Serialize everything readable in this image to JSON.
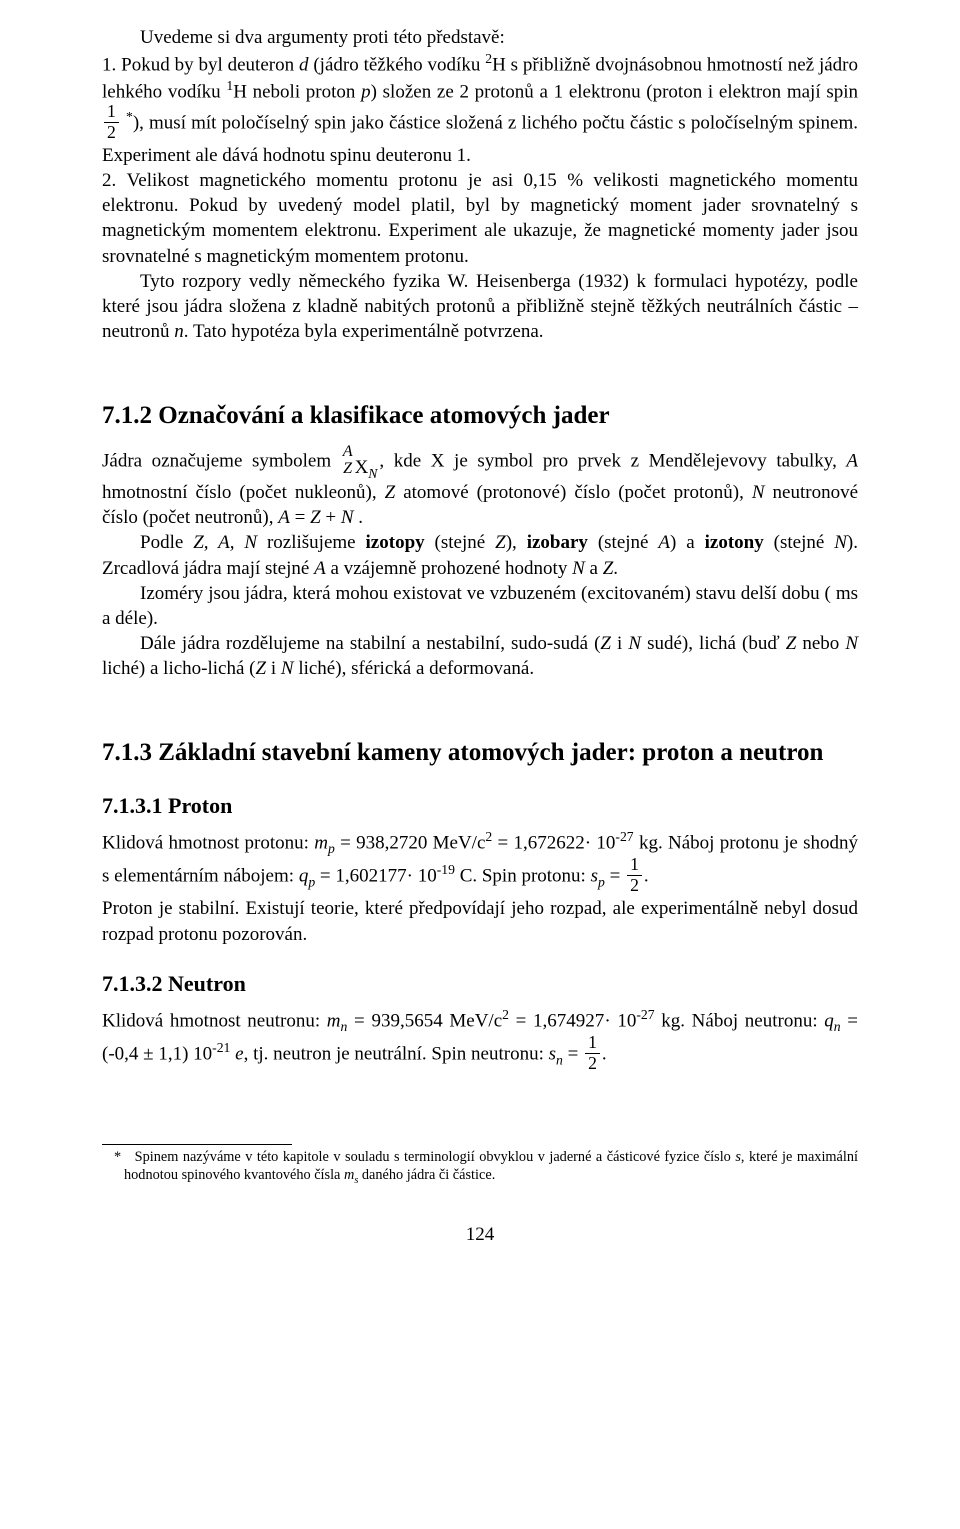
{
  "intro_line": "Uvedeme si dva argumenty proti této představě:",
  "item1_a": "1. Pokud by byl deuteron ",
  "item1_b": " (jádro těžkého vodíku ",
  "item1_c": "H s přibližně dvojnásobnou hmotností než jádro lehkého vodíku ",
  "item1_d": "H neboli proton ",
  "item1_e": ") složen ze 2 protonů a 1 elektronu (proton i elektron mají spin",
  "item1_f": "), musí mít poločíselný spin jako částice složená z lichého počtu částic s poločíselným spinem. Experiment ale dává hodnotu spinu deuteronu 1.",
  "item2": "2. Velikost magnetického momentu protonu je asi 0,15 % velikosti magnetického momentu elektronu. Pokud by uvedený model platil, byl by magnetický moment jader srovnatelný s magnetickým momentem elektronu. Experiment ale ukazuje, že magnetické momenty jader jsou srovnatelné s magnetickým momentem protonu.",
  "para2a": "Tyto rozpory vedly německého fyzika W. Heisenberga (1932) k formulaci hypotézy, podle které jsou jádra složena z kladně nabitých protonů a přibližně stejně těžkých neutrálních částic – neutronů ",
  "para2b": ". Tato hypotéza byla experimentálně potvrzena.",
  "h712": "7.1.2  Označování a klasifikace atomových jader",
  "s712_a": "Jádra označujeme symbolem",
  "s712_b": ",  kde X je symbol pro prvek z Mendělejevovy tabulky, ",
  "s712_c": " hmotnostní číslo (počet nukleonů), ",
  "s712_d": " atomové (protonové) číslo (počet protonů), ",
  "s712_e": " neutronové číslo (počet neutronů), ",
  "s712_f": " = ",
  "s712_g": " + ",
  "s712_h": " .",
  "s712_p2a": "Podle ",
  "s712_p2b": " rozlišujeme ",
  "s712_p2c": " (stejné ",
  "s712_p2d": "), ",
  "s712_p2e": " (stejné ",
  "s712_p2f": ") a ",
  "s712_p2g": " (stejné ",
  "s712_p2h": "). Zrcadlová jádra mají stejné ",
  "s712_p2i": " a vzájemně prohozené hodnoty ",
  "s712_p2j": " a ",
  "s712_p2k": ".",
  "s712_p3": "Izoméry jsou jádra, která mohou existovat ve vzbuzeném (excitovaném) stavu delší dobu ( ms a déle).",
  "s712_p4a": "Dále jádra rozdělujeme na stabilní a nestabilní, sudo-sudá (",
  "s712_p4b": " i ",
  "s712_p4c": " sudé), lichá (buď ",
  "s712_p4d": " nebo ",
  "s712_p4e": "  liché) a licho-lichá (",
  "s712_p4f": " i ",
  "s712_p4g": " liché), sférická a deformovaná.",
  "h713": "7.1.3  Základní stavební kameny atomových jader: proton a neutron",
  "h7131": "7.1.3.1  Proton",
  "proton_a": "Klidová hmotnost protonu: ",
  "proton_b": " = 938,2720 MeV/c",
  "proton_c": " = 1,672622",
  "proton_d": " kg. Náboj protonu je shodný s elementárním nábojem: ",
  "proton_e": " = 1,602177",
  "proton_f": " C. Spin protonu: ",
  "proton_g": ".",
  "proton_p2": "Proton je stabilní. Existují teorie, které předpovídají jeho rozpad, ale experimentálně nebyl dosud rozpad protonu pozorován.",
  "h7132": "7.1.3.2  Neutron",
  "neutron_a": "Klidová hmotnost neutronu: ",
  "neutron_b": " = 939,5654 MeV/c",
  "neutron_c": " = 1,674927",
  "neutron_d": " kg. Náboj neutronu: ",
  "neutron_e": " = (-0,4 ± 1,1) 10",
  "neutron_f": ", tj. neutron je neutrální. Spin neutronu: ",
  "neutron_g": ".",
  "footnote_mark": "*",
  "footnote_a": "Spinem nazýváme v této kapitole v souladu s terminologií obvyklou v jaderné a částicové fyzice číslo ",
  "footnote_b": ", které je maximální hodnotou spinového kvantového čísla ",
  "footnote_c": " daného jádra či částice.",
  "sym": {
    "d": "d",
    "p": "p",
    "n": "n",
    "A": "A",
    "Z": "Z",
    "N": "N",
    "s": "s",
    "e": "e",
    "X": "X",
    "mp": "m",
    "mn": "m",
    "qp": "q",
    "qn": "q",
    "sp": "s",
    "sn": "s",
    "ms": "m",
    "subp": "p",
    "subn": "n",
    "subs": "s",
    "subN": "N"
  },
  "num": {
    "one": "1",
    "two": "2",
    "sup2": "2",
    "sup1": "1",
    "e27": "-27",
    "e19": "-19",
    "e21": "-21",
    "ten": "10",
    "dot": "·"
  },
  "bold": {
    "izotopy": "izotopy",
    "izobary": "izobary",
    "izotony": "izotony"
  },
  "listsep": {
    "ZAN": "Z, A, N"
  },
  "pagenum": "124"
}
